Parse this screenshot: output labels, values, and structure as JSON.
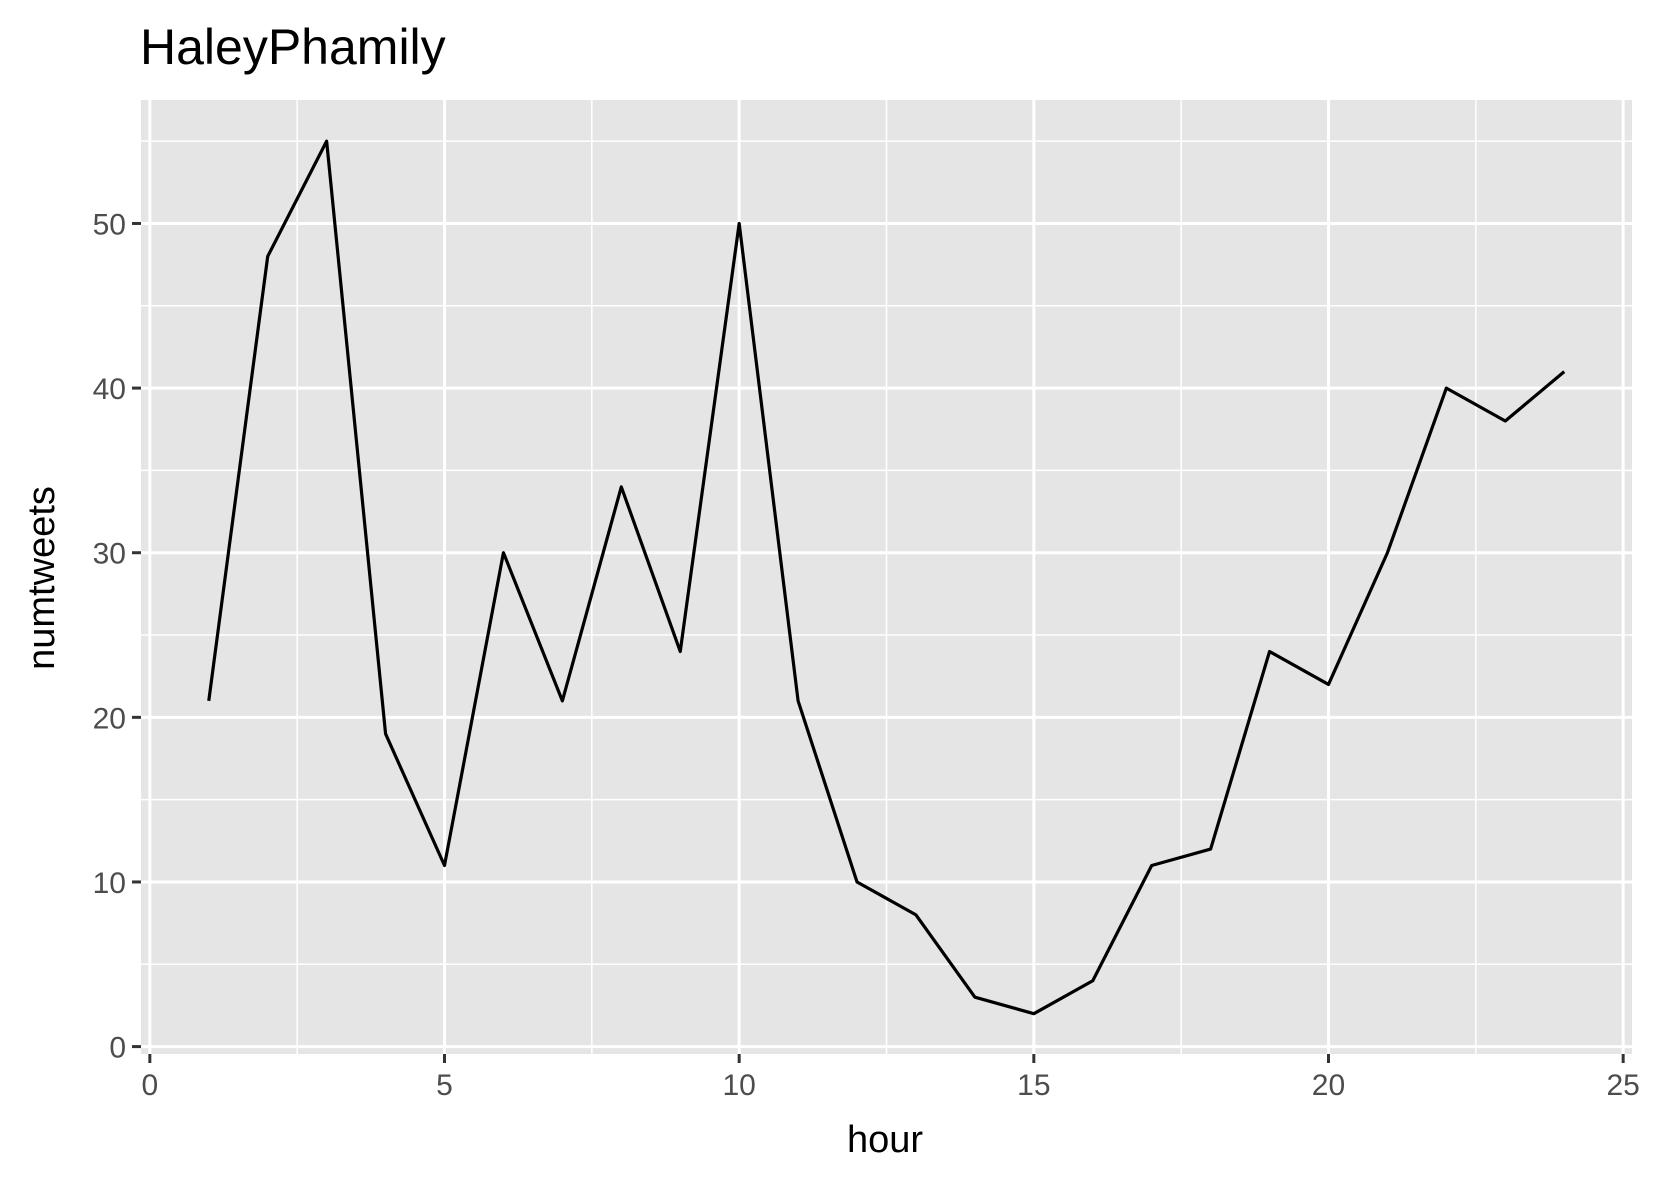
{
  "chart_data": {
    "type": "line",
    "title": "HaleyPhamily",
    "xlabel": "hour",
    "ylabel": "numtweets",
    "xlim": [
      -0.15,
      25.15
    ],
    "ylim": [
      -0.45,
      57.5
    ],
    "x_ticks": [
      0,
      5,
      10,
      15,
      20,
      25
    ],
    "y_ticks": [
      0,
      10,
      20,
      30,
      40,
      50
    ],
    "x_tick_labels": [
      "0",
      "5",
      "10",
      "15",
      "20",
      "25"
    ],
    "y_tick_labels": [
      "0",
      "10",
      "20",
      "30",
      "40",
      "50"
    ],
    "x_minor_ticks": [
      2.5,
      7.5,
      12.5,
      17.5,
      22.5
    ],
    "y_minor_ticks": [
      5,
      15,
      25,
      35,
      45,
      55
    ],
    "grid": true,
    "legend": "none",
    "series": [
      {
        "x": [
          1,
          2,
          3,
          4,
          5,
          6,
          7,
          8,
          9,
          10,
          11,
          12,
          13,
          14,
          15,
          16,
          17,
          18,
          19,
          20,
          21,
          22,
          23,
          24
        ],
        "values": [
          21,
          48,
          55,
          19,
          11,
          30,
          21,
          34,
          24,
          50,
          21,
          10,
          8,
          3,
          2,
          4,
          11,
          12,
          24,
          22,
          30,
          40,
          38,
          41
        ],
        "color": "#000000"
      }
    ],
    "colors": {
      "panel_background": "#e5e5e5",
      "grid": "#ffffff",
      "tick_label": "#4d4d4d",
      "line": "#000000"
    }
  }
}
